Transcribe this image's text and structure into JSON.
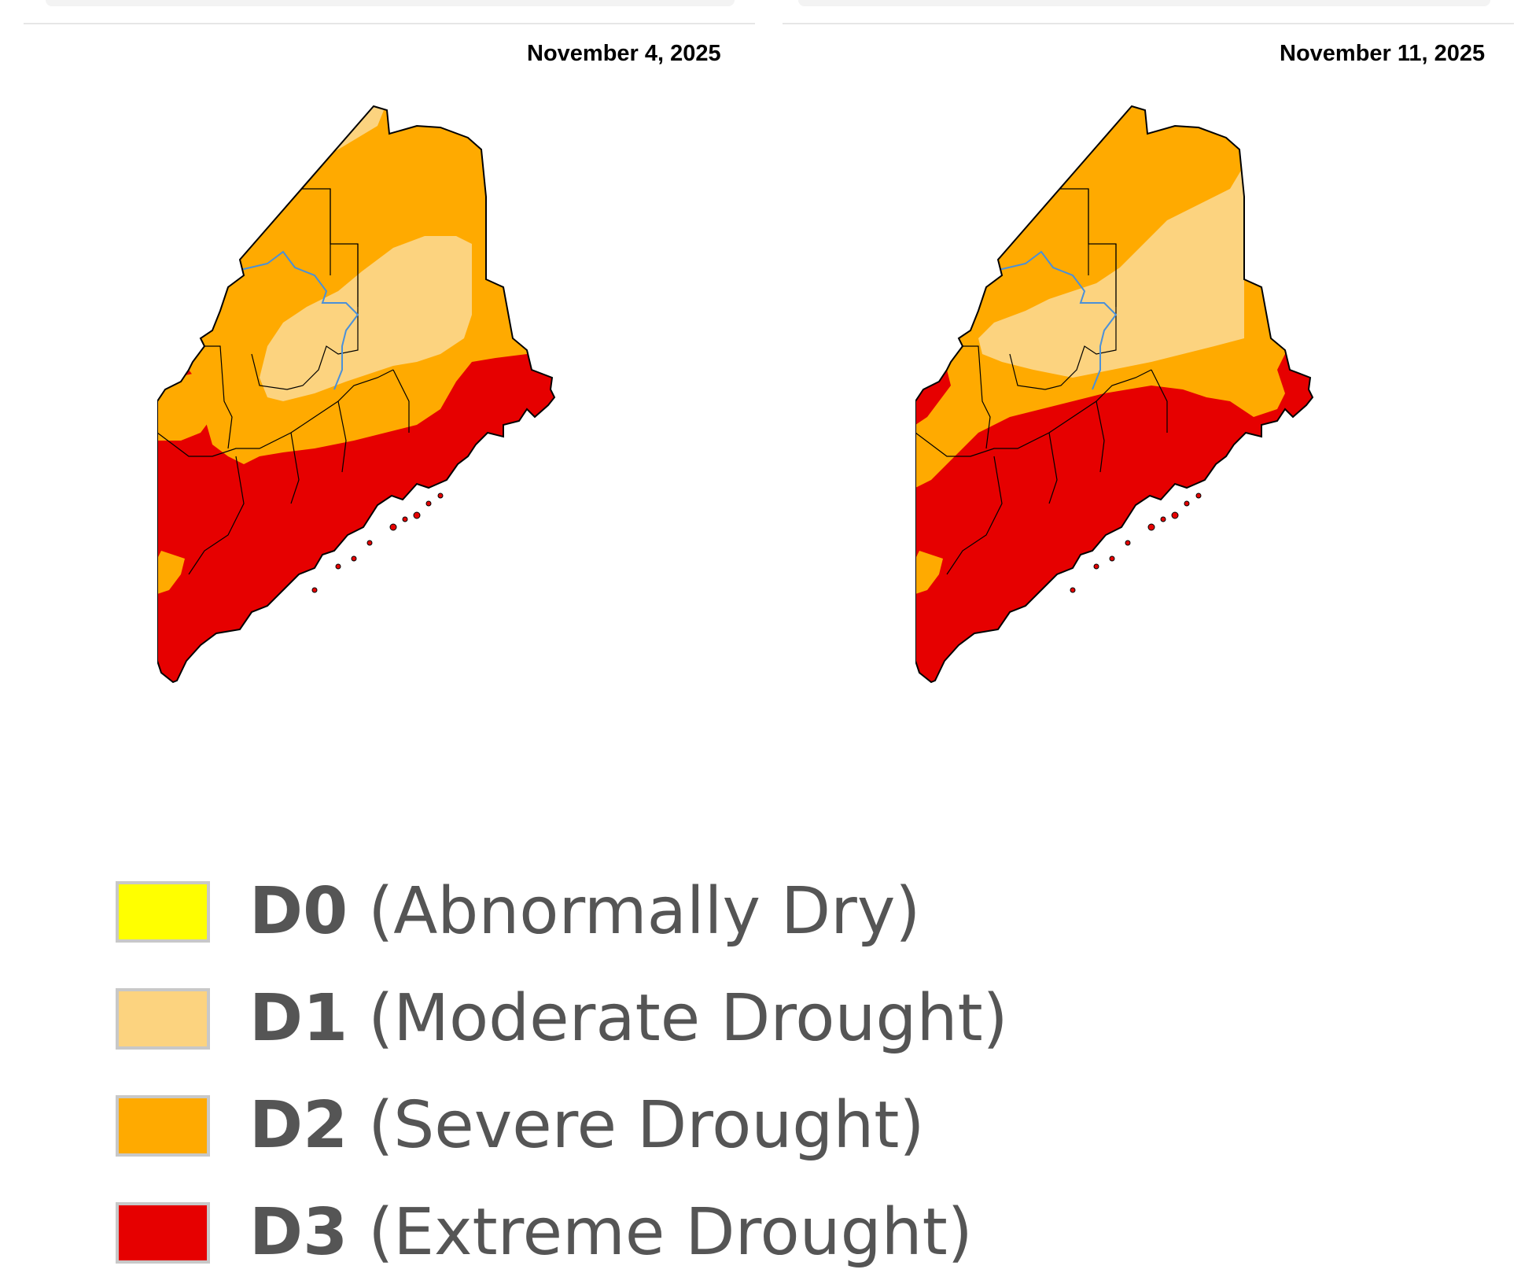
{
  "maps": [
    {
      "date": "November 4, 2025"
    },
    {
      "date": "November 11, 2025"
    }
  ],
  "legend": [
    {
      "code": "D0",
      "label": "(Abnormally Dry)",
      "color": "#ffff00"
    },
    {
      "code": "D1",
      "label": "(Moderate Drought)",
      "color": "#fcd37f"
    },
    {
      "code": "D2",
      "label": "(Severe Drought)",
      "color": "#ffaa00"
    },
    {
      "code": "D3",
      "label": "(Extreme Drought)",
      "color": "#e60000"
    }
  ],
  "colors": {
    "river": "#4a90d9",
    "border": "#000000"
  }
}
